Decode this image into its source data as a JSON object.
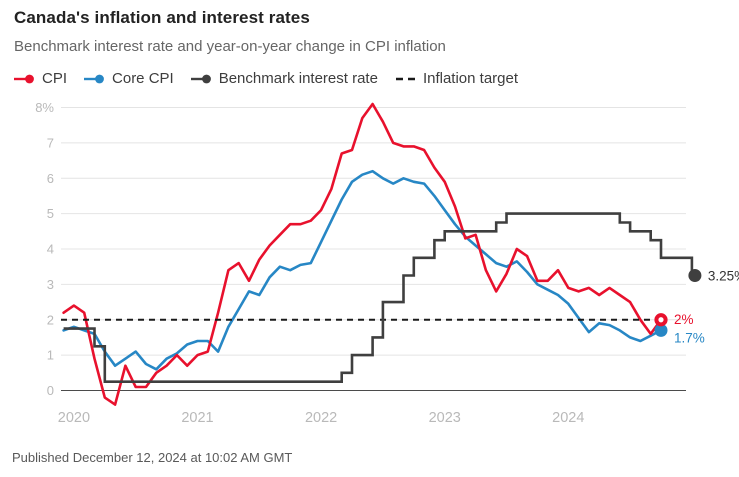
{
  "header": {
    "title": "Canada's inflation and interest rates",
    "subtitle": "Benchmark interest rate and year-on-year change in CPI inflation"
  },
  "legend": {
    "items": [
      {
        "label": "CPI",
        "color": "#e8112d",
        "marker": "line-dot"
      },
      {
        "label": "Core CPI",
        "color": "#2787c5",
        "marker": "line-dot"
      },
      {
        "label": "Benchmark interest rate",
        "color": "#3f3f3f",
        "marker": "line-dot"
      },
      {
        "label": "Inflation target",
        "color": "#1a1a1a",
        "marker": "dashes"
      }
    ]
  },
  "chart_data": {
    "type": "line",
    "unit": "%",
    "x_start_month": "Dec 2019",
    "x_end_month_cpi": "Oct 2024",
    "x_end_month_rate": "Dec 2024",
    "points_are_monthly": true,
    "x_tick_labels": [
      "2020",
      "2021",
      "2022",
      "2023",
      "2024"
    ],
    "x_tick_month_index": [
      1,
      13,
      25,
      37,
      49
    ],
    "ylim": [
      -0.5,
      8.1
    ],
    "y_tick_labels_top_down": [
      "8%",
      "7",
      "6",
      "5",
      "4",
      "3",
      "2",
      "1",
      "0"
    ],
    "grid": true,
    "legend_position": "top",
    "series": [
      {
        "name": "CPI",
        "type": "line",
        "color": "#e8112d",
        "end_label": "2%",
        "end_value": 2.0,
        "values": [
          2.2,
          2.4,
          2.2,
          0.9,
          -0.2,
          -0.4,
          0.7,
          0.1,
          0.1,
          0.5,
          0.7,
          1.0,
          0.7,
          1.0,
          1.1,
          2.2,
          3.4,
          3.6,
          3.1,
          3.7,
          4.1,
          4.4,
          4.7,
          4.7,
          4.8,
          5.1,
          5.7,
          6.7,
          6.8,
          7.7,
          8.1,
          7.6,
          7.0,
          6.9,
          6.9,
          6.8,
          6.3,
          5.9,
          5.2,
          4.3,
          4.4,
          3.4,
          2.8,
          3.3,
          4.0,
          3.8,
          3.1,
          3.1,
          3.4,
          2.9,
          2.8,
          2.9,
          2.7,
          2.9,
          2.7,
          2.5,
          2.0,
          1.6,
          2.0
        ]
      },
      {
        "name": "Core CPI",
        "type": "line",
        "color": "#2787c5",
        "end_label": "1.7%",
        "end_value": 1.7,
        "values": [
          1.7,
          1.8,
          1.7,
          1.6,
          1.1,
          0.7,
          0.9,
          1.1,
          0.75,
          0.6,
          0.9,
          1.05,
          1.3,
          1.4,
          1.4,
          1.1,
          1.8,
          2.3,
          2.8,
          2.7,
          3.2,
          3.5,
          3.4,
          3.55,
          3.6,
          4.2,
          4.8,
          5.4,
          5.9,
          6.1,
          6.2,
          6.0,
          5.85,
          6.0,
          5.9,
          5.85,
          5.5,
          5.1,
          4.7,
          4.35,
          4.1,
          3.85,
          3.6,
          3.5,
          3.65,
          3.35,
          3.0,
          2.85,
          2.7,
          2.45,
          2.05,
          1.65,
          1.9,
          1.85,
          1.7,
          1.5,
          1.4,
          1.55,
          1.7
        ]
      },
      {
        "name": "Benchmark interest rate",
        "type": "step",
        "color": "#3f3f3f",
        "end_label": "3.25%",
        "end_value": 3.25,
        "steps": [
          [
            0,
            1.75
          ],
          [
            3,
            1.25
          ],
          [
            4,
            0.25
          ],
          [
            27,
            0.5
          ],
          [
            28,
            1.0
          ],
          [
            30,
            1.5
          ],
          [
            31,
            2.5
          ],
          [
            33,
            3.25
          ],
          [
            34,
            3.75
          ],
          [
            36,
            4.25
          ],
          [
            37,
            4.5
          ],
          [
            42,
            4.75
          ],
          [
            43,
            5.0
          ],
          [
            54,
            4.75
          ],
          [
            55,
            4.5
          ],
          [
            57,
            4.25
          ],
          [
            58,
            3.75
          ],
          [
            61,
            3.25
          ]
        ]
      },
      {
        "name": "Inflation target",
        "type": "dashed-reference",
        "color": "#1a1a1a",
        "value": 2
      }
    ]
  },
  "footer": {
    "published": "Published December 12, 2024 at 10:02 AM GMT"
  },
  "colors": {
    "grid": "#e4e4e4",
    "zero_line": "#4b4b4b",
    "axis_text": "#b9b9b9",
    "end_label_dark": "#333333"
  }
}
